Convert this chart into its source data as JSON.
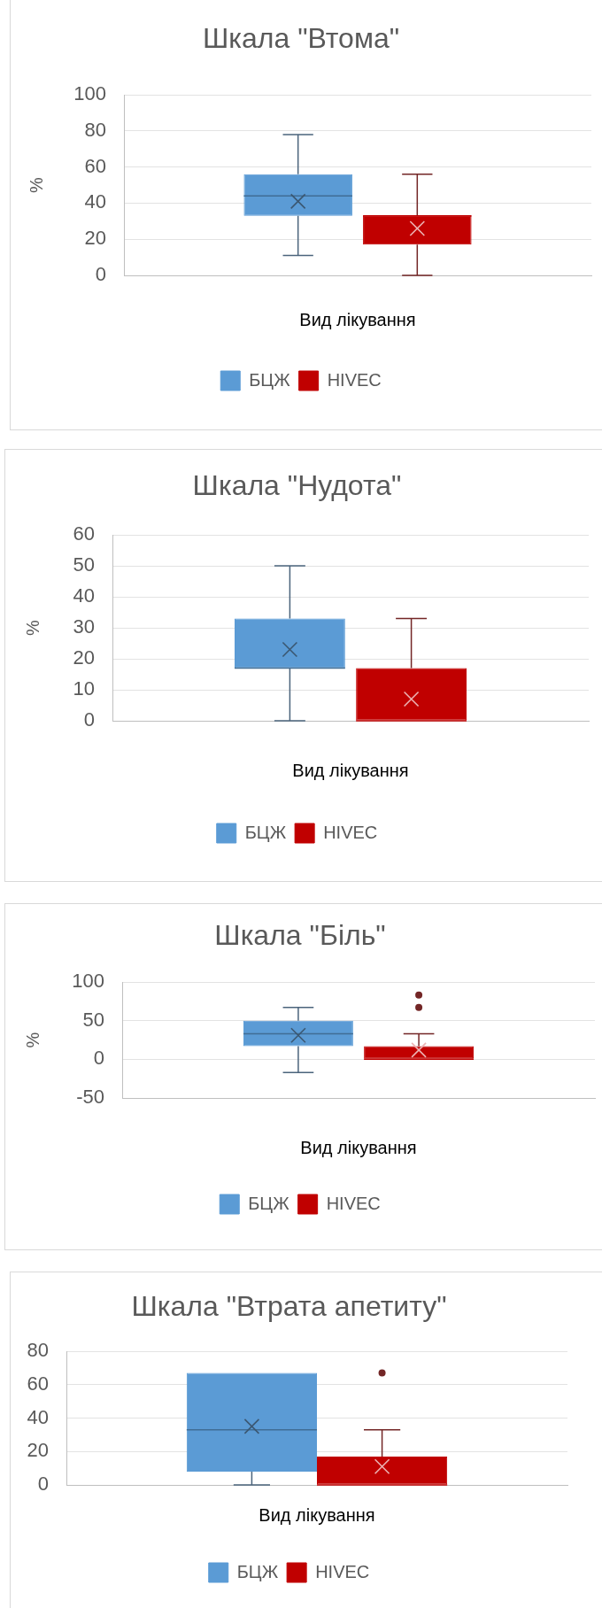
{
  "chart_data": [
    {
      "type": "box",
      "title": "Шкала \"Втома\"",
      "xlabel": "Вид лікування",
      "ylabel": "%",
      "categories": [
        null
      ],
      "series": [
        {
          "name": "БЦЖ",
          "color": "#5b9bd5",
          "boxes": [
            {
              "low": 11,
              "q1": 33,
              "median": 44,
              "q3": 56,
              "high": 78,
              "mean": 41
            }
          ]
        },
        {
          "name": "HIVEC",
          "color": "#c00000",
          "boxes": [
            {
              "low": 0,
              "q1": 17,
              "median": 33,
              "q3": 33,
              "high": 56,
              "mean": 26
            }
          ]
        }
      ],
      "ylim": [
        0,
        100
      ],
      "yticks": [
        0,
        20,
        40,
        60,
        80,
        100
      ],
      "grid": "y",
      "legend": "bottom",
      "tick_labels": "y"
    },
    {
      "type": "box",
      "title": "Шкала \"Нудота\"",
      "xlabel": "Вид лікування",
      "ylabel": "%",
      "categories": [
        null
      ],
      "series": [
        {
          "name": "БЦЖ",
          "color": "#5b9bd5",
          "boxes": [
            {
              "low": 0,
              "q1": 17,
              "median": 17,
              "q3": 33,
              "high": 50,
              "mean": 23
            }
          ]
        },
        {
          "name": "HIVEC",
          "color": "#c00000",
          "boxes": [
            {
              "low": 0,
              "q1": 0,
              "median": 0,
              "q3": 17,
              "high": 33,
              "mean": 7
            }
          ]
        }
      ],
      "ylim": [
        0,
        60
      ],
      "yticks": [
        0,
        10,
        20,
        30,
        40,
        50,
        60
      ],
      "grid": "y",
      "legend": "bottom",
      "tick_labels": "y"
    },
    {
      "type": "box",
      "title": "Шкала \"Біль\"",
      "xlabel": "Вид лікування",
      "ylabel": "%",
      "categories": [
        null
      ],
      "series": [
        {
          "name": "БЦЖ",
          "color": "#5b9bd5",
          "boxes": [
            {
              "low": -17,
              "q1": 17,
              "median": 33,
              "q3": 50,
              "high": 67,
              "mean": 31
            }
          ]
        },
        {
          "name": "HIVEC",
          "color": "#c00000",
          "boxes": [
            {
              "low": 0,
              "q1": 0,
              "median": 0,
              "q3": 17,
              "high": 33,
              "mean": 12,
              "outliers": [
                67,
                83
              ]
            }
          ]
        }
      ],
      "ylim": [
        -50,
        100
      ],
      "yticks": [
        -50,
        0,
        50,
        100
      ],
      "grid": "y",
      "legend": "bottom",
      "tick_labels": "y"
    },
    {
      "type": "box",
      "title": "Шкала \"Втрата апетиту\"",
      "xlabel": "Вид лікування",
      "categories": [
        null
      ],
      "series": [
        {
          "name": "БЦЖ",
          "color": "#5b9bd5",
          "boxes": [
            {
              "low": 0,
              "q1": 8,
              "median": 33,
              "q3": 67,
              "high": 67,
              "mean": 35
            }
          ]
        },
        {
          "name": "HIVEC",
          "color": "#c00000",
          "boxes": [
            {
              "low": 0,
              "q1": 0,
              "median": 0,
              "q3": 17,
              "high": 33,
              "mean": 11,
              "outliers": [
                67
              ]
            }
          ]
        }
      ],
      "ylim": [
        0,
        80
      ],
      "yticks": [
        0,
        20,
        40,
        60,
        80
      ],
      "grid": "y",
      "legend": "bottom",
      "tick_labels": "y"
    }
  ]
}
